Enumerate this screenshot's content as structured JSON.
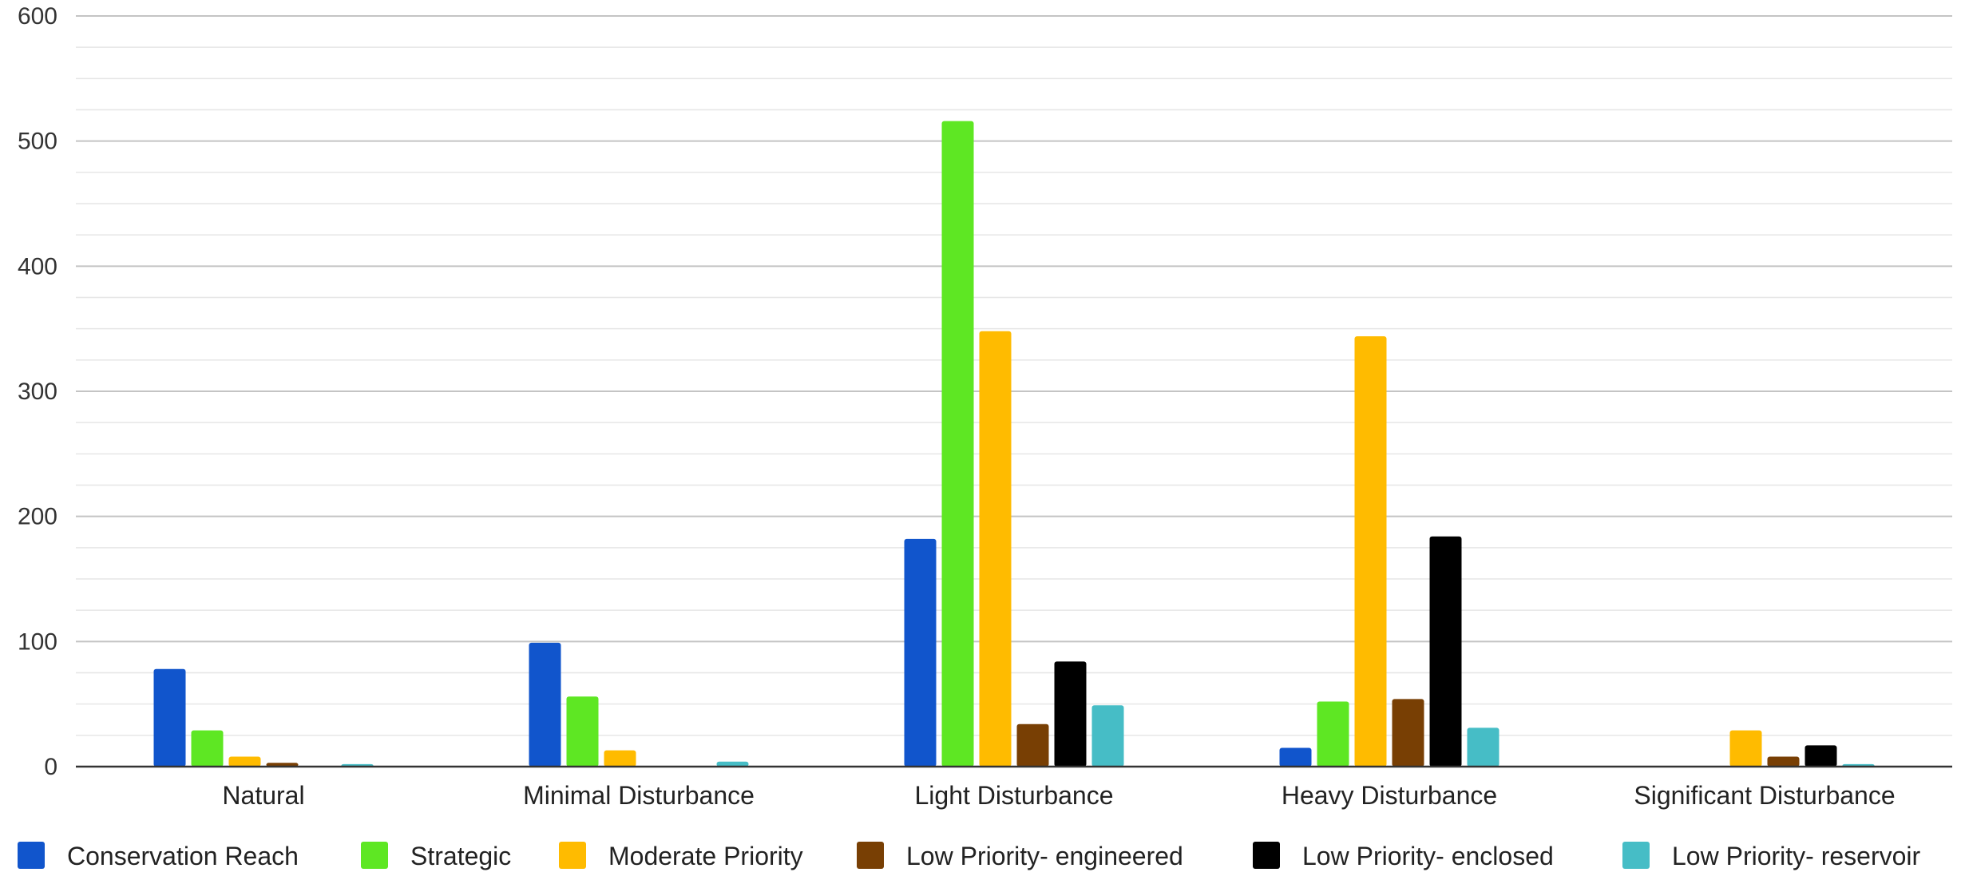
{
  "chart_data": {
    "type": "bar",
    "title": "",
    "xlabel": "",
    "ylabel": "",
    "ylim": [
      0,
      600
    ],
    "yticks": [
      "0",
      "100",
      "200",
      "300",
      "400",
      "500",
      "600"
    ],
    "grid": true,
    "legend_position": "bottom",
    "categories": [
      "Natural",
      "Minimal Disturbance",
      "Light Disturbance",
      "Heavy Disturbance",
      "Significant Disturbance"
    ],
    "series": [
      {
        "name": "Conservation Reach",
        "color": "#1155cc",
        "values": [
          78,
          99,
          182,
          15,
          0
        ]
      },
      {
        "name": "Strategic",
        "color": "#5ee723",
        "values": [
          29,
          56,
          516,
          52,
          0
        ]
      },
      {
        "name": "Moderate Priority",
        "color": "#ffbb00",
        "values": [
          8,
          13,
          348,
          344,
          29
        ]
      },
      {
        "name": "Low Priority- engineered",
        "color": "#783f04",
        "values": [
          3,
          0,
          34,
          54,
          8
        ]
      },
      {
        "name": "Low Priority- enclosed",
        "color": "#000000",
        "values": [
          0,
          0,
          84,
          184,
          17
        ]
      },
      {
        "name": "Low Priority- reservoir",
        "color": "#46bdc6",
        "values": [
          2,
          4,
          49,
          31,
          2
        ]
      }
    ]
  }
}
